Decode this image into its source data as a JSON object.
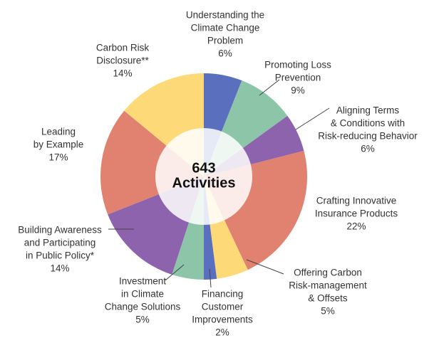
{
  "chart_data": {
    "type": "pie",
    "categories": [
      [
        "Understanding the",
        "Climate Change",
        "Problem"
      ],
      [
        "Promoting Loss",
        "Prevention"
      ],
      [
        "Aligning Terms",
        "& Conditions with",
        "Risk-reducing Behavior"
      ],
      [
        "Crafting Innovative",
        "Insurance Products"
      ],
      [
        "Offering Carbon",
        "Risk-management",
        "& Offsets"
      ],
      [
        "Financing",
        "Customer",
        "Improvements"
      ],
      [
        "Investment",
        "in Climate",
        "Change Solutions"
      ],
      [
        "Building Awareness",
        "and Participating",
        "in Public Policy*"
      ],
      [
        "Leading",
        "by Example"
      ],
      [
        "Carbon Risk",
        "Disclosure**"
      ]
    ],
    "values": [
      6,
      9,
      6,
      22,
      5,
      2,
      5,
      14,
      17,
      14
    ],
    "value_labels": [
      "6%",
      "9%",
      "6%",
      "22%",
      "5%",
      "2%",
      "5%",
      "14%",
      "17%",
      "14%"
    ],
    "colors": [
      "#5b6fbf",
      "#8cc5a8",
      "#8e63ad",
      "#e0826f",
      "#fdd978",
      "#5b6fbf",
      "#8cc5a8",
      "#8e63ad",
      "#e0826f",
      "#fdd978"
    ],
    "center_label": [
      "643",
      "Activities"
    ]
  }
}
